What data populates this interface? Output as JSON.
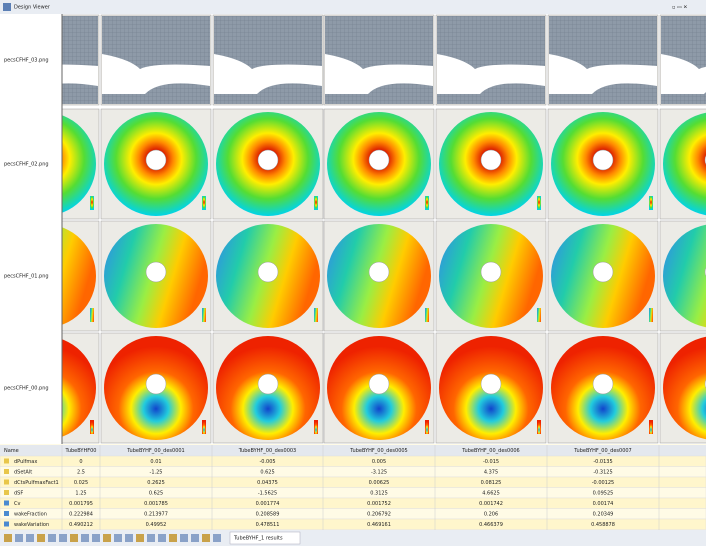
{
  "window": {
    "title": "Design Viewer"
  },
  "image_rows": [
    "pecsCFHF_03.png",
    "pecsCFHF_02.png",
    "pecsCFHF_01.png",
    "pecsCFHF_00.png"
  ],
  "table": {
    "header": [
      "Name",
      "TubeBYHF00",
      "TubeBYHF_00_des0001",
      "TubeBYHF_00_des0003",
      "TubeBYHF_00_des0005",
      "TubeBYHF_00_des0006",
      "TubeBYHF_00_des0007"
    ],
    "rows": [
      {
        "name": "dPulfmax",
        "cells": [
          "0",
          "0.01",
          "-0.005",
          "0.005",
          "-0.015",
          "-0.0135"
        ]
      },
      {
        "name": "dSetAlt",
        "cells": [
          "2.5",
          "-1.25",
          "0.625",
          "-3.125",
          "4.375",
          "-0.3125"
        ]
      },
      {
        "name": "dCtsPulfmaxFact1",
        "cells": [
          "0.025",
          "0.2625",
          "0.04375",
          "0.00625",
          "0.08125",
          "-0.00125"
        ]
      },
      {
        "name": "dSF",
        "cells": [
          "1.25",
          "0.625",
          "-1.5625",
          "0.3125",
          "4.6625",
          "0.09525"
        ]
      },
      {
        "name": "Cv",
        "cells": [
          "0.001795",
          "0.001785",
          "0.001774",
          "0.001752",
          "0.001742",
          "0.00174"
        ]
      },
      {
        "name": "wakeFraction",
        "cells": [
          "0.222984",
          "0.213977",
          "0.208589",
          "0.206792",
          "0.206",
          "0.20349"
        ]
      },
      {
        "name": "wakeVariation",
        "cells": [
          "0.490212",
          "0.49952",
          "0.478511",
          "0.469161",
          "0.466379",
          "0.458878"
        ]
      }
    ]
  },
  "status": {
    "tab": "TubeBYHF_1 results"
  }
}
